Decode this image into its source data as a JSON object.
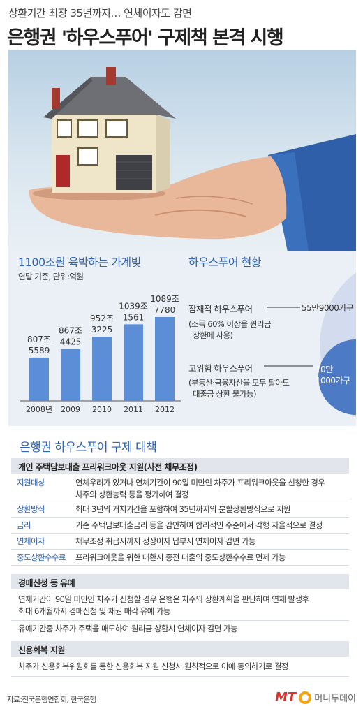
{
  "header": {
    "subtitle": "상환기간 최장 35년까지… 연체이자도 감면",
    "title": "은행권 '하우스푸어' 구제책 본격 시행"
  },
  "debt_chart": {
    "title": "1100조원 육박하는 가계빚",
    "note": "연말 기준, 단위:억원"
  },
  "chart_data": {
    "type": "bar",
    "categories": [
      "2008년",
      "2009",
      "2010",
      "2011",
      "2012"
    ],
    "labels_jo": [
      "807조",
      "867조",
      "952조",
      "1039조",
      "1089조"
    ],
    "labels_eok": [
      "5589",
      "4425",
      "3225",
      "1561",
      "7780"
    ],
    "values": [
      807.5589,
      867.4425,
      952.3225,
      1039.1561,
      1089.778
    ],
    "bar_color": "#5b8ed6"
  },
  "status": {
    "title": "하우스푸어 현황",
    "latent_label": "잠재적 하우스푸어",
    "latent_desc_1": "(소득 60% 이상을 원리금",
    "latent_desc_2": "상환에 사용)",
    "latent_value": "55만9000가구",
    "high_label": "고위험 하우스푸어",
    "high_desc_1": "(부동산·금융자산을 모두 팔아도",
    "high_desc_2": "대출금 상환 불가능)",
    "high_value_1": "10만",
    "high_value_2": "1000가구",
    "latent_color": "#d3dcee",
    "high_color": "#4d7ac4"
  },
  "measures": {
    "title": "은행권 하우스푸어 구제 대책",
    "group1": {
      "title": "개인 주택담보대출 프리워크아웃 지원(사전 채무조정)",
      "rows": [
        {
          "label": "지원대상",
          "text_1": "연체우려가 있거나 연체기간이 90일 미만인 차주가 프리워크아웃을 신청한 경우",
          "text_2": "차주의 상환능력 등을 평가하여 결정"
        },
        {
          "label": "상환방식",
          "text_1": "최대 3년의 거치기간을 포함하여 35년까지의 분할상환방식으로 지원",
          "text_2": ""
        },
        {
          "label": "금리",
          "text_1": "기존 주택담보대출금리 등을 감안하여 합리적인 수준에서 각행 자율적으로 결정",
          "text_2": ""
        },
        {
          "label": "연체이자",
          "text_1": "채무조정 취급시까지 정상이자 납부시 연체이자 감면 가능",
          "text_2": ""
        },
        {
          "label": "중도상환수수료",
          "text_1": "프리워크아웃을 위한 대환시 종전 대출의 중도상환수수료 면제 가능",
          "text_2": ""
        }
      ]
    },
    "group2": {
      "title": "경매신청 등 유예",
      "line_1": "연체기간이 90일 미만인 차주가 신청할 경우 은행은 차주의 상환계획을 판단하여 연체 발생후",
      "line_2": "최대 6개월까지 경매신청 및 채권 매각 유예 가능",
      "line_3": "유예기간중 차주가 주택을 매도하여 원리금 상환시 연체이자 감면 가능"
    },
    "group3": {
      "title": "신용회복 지원",
      "line_1": "차주가 신용회복위원회를 통한 신용회복 지원 신청시 원칙적으로 이에 동의하기로 결정"
    }
  },
  "footer": {
    "source": "자료:전국은행연합회, 한국은행",
    "logo_mt": "MT",
    "logo_name": "머니투데이"
  }
}
